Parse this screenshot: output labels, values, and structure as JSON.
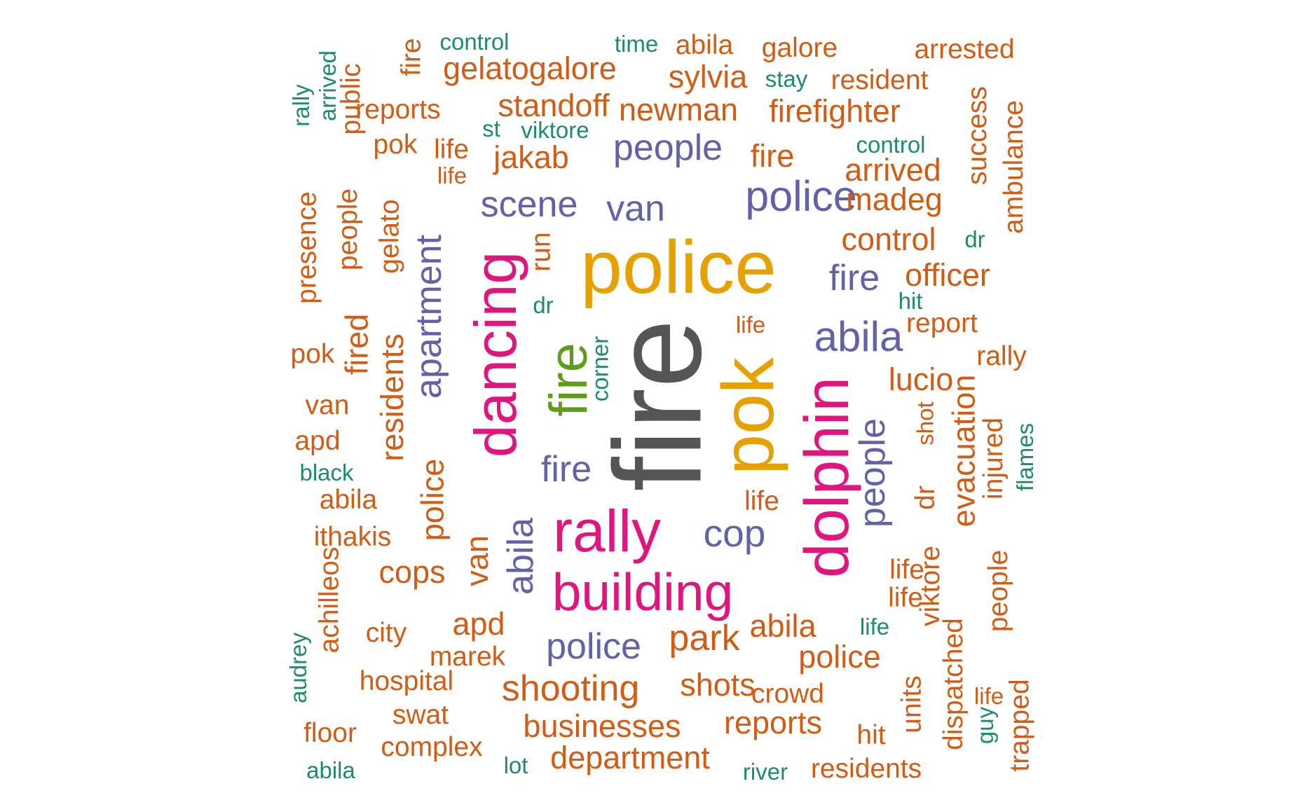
{
  "palette": {
    "dark_gray": "#555555",
    "gold": "#E6A100",
    "magenta": "#E0157D",
    "green": "#5E9E16",
    "purple": "#6560A8",
    "orange": "#D35C14",
    "teal": "#1E8B6C"
  },
  "words": [
    {
      "text": "fire",
      "color": "dark_gray"
    },
    {
      "text": "police",
      "color": "gold"
    },
    {
      "text": "pok",
      "color": "gold"
    },
    {
      "text": "dancing",
      "color": "magenta"
    },
    {
      "text": "dolphin",
      "color": "magenta"
    },
    {
      "text": "rally",
      "color": "magenta"
    },
    {
      "text": "building",
      "color": "magenta"
    },
    {
      "text": "fire",
      "color": "green"
    },
    {
      "text": "police",
      "color": "purple"
    },
    {
      "text": "abila",
      "color": "purple"
    },
    {
      "text": "cop",
      "color": "purple"
    },
    {
      "text": "people",
      "color": "purple"
    },
    {
      "text": "van",
      "color": "purple"
    },
    {
      "text": "scene",
      "color": "purple"
    },
    {
      "text": "fire",
      "color": "purple"
    },
    {
      "text": "fire",
      "color": "purple"
    },
    {
      "text": "apartment",
      "color": "purple"
    },
    {
      "text": "abila",
      "color": "purple"
    },
    {
      "text": "police",
      "color": "purple"
    },
    {
      "text": "people",
      "color": "purple"
    },
    {
      "text": "control",
      "color": "teal"
    },
    {
      "text": "time",
      "color": "teal"
    },
    {
      "text": "abila",
      "color": "orange"
    },
    {
      "text": "galore",
      "color": "orange"
    },
    {
      "text": "arrested",
      "color": "orange"
    },
    {
      "text": "fire",
      "color": "orange"
    },
    {
      "text": "gelatogalore",
      "color": "orange"
    },
    {
      "text": "sylvia",
      "color": "orange"
    },
    {
      "text": "stay",
      "color": "teal"
    },
    {
      "text": "resident",
      "color": "orange"
    },
    {
      "text": "rally",
      "color": "teal"
    },
    {
      "text": "arrived",
      "color": "teal"
    },
    {
      "text": "public",
      "color": "orange"
    },
    {
      "text": "reports",
      "color": "orange"
    },
    {
      "text": "standoff",
      "color": "orange"
    },
    {
      "text": "newman",
      "color": "orange"
    },
    {
      "text": "firefighter",
      "color": "orange"
    },
    {
      "text": "success",
      "color": "orange"
    },
    {
      "text": "ambulance",
      "color": "orange"
    },
    {
      "text": "st",
      "color": "teal"
    },
    {
      "text": "viktore",
      "color": "teal"
    },
    {
      "text": "pok",
      "color": "orange"
    },
    {
      "text": "life",
      "color": "orange"
    },
    {
      "text": "life",
      "color": "orange"
    },
    {
      "text": "jakab",
      "color": "orange"
    },
    {
      "text": "fire",
      "color": "orange"
    },
    {
      "text": "control",
      "color": "teal"
    },
    {
      "text": "arrived",
      "color": "orange"
    },
    {
      "text": "presence",
      "color": "orange"
    },
    {
      "text": "people",
      "color": "orange"
    },
    {
      "text": "gelato",
      "color": "orange"
    },
    {
      "text": "madeg",
      "color": "orange"
    },
    {
      "text": "control",
      "color": "orange"
    },
    {
      "text": "dr",
      "color": "teal"
    },
    {
      "text": "run",
      "color": "orange"
    },
    {
      "text": "officer",
      "color": "orange"
    },
    {
      "text": "hit",
      "color": "teal"
    },
    {
      "text": "dr",
      "color": "teal"
    },
    {
      "text": "fired",
      "color": "orange"
    },
    {
      "text": "residents",
      "color": "orange"
    },
    {
      "text": "corner",
      "color": "teal"
    },
    {
      "text": "life",
      "color": "orange"
    },
    {
      "text": "report",
      "color": "orange"
    },
    {
      "text": "pok",
      "color": "orange"
    },
    {
      "text": "rally",
      "color": "orange"
    },
    {
      "text": "lucio",
      "color": "orange"
    },
    {
      "text": "van",
      "color": "orange"
    },
    {
      "text": "shot",
      "color": "orange"
    },
    {
      "text": "evacuation",
      "color": "orange"
    },
    {
      "text": "injured",
      "color": "orange"
    },
    {
      "text": "flames",
      "color": "teal"
    },
    {
      "text": "apd",
      "color": "orange"
    },
    {
      "text": "black",
      "color": "teal"
    },
    {
      "text": "police",
      "color": "orange"
    },
    {
      "text": "dr",
      "color": "orange"
    },
    {
      "text": "abila",
      "color": "orange"
    },
    {
      "text": "life",
      "color": "orange"
    },
    {
      "text": "ithakis",
      "color": "orange"
    },
    {
      "text": "van",
      "color": "orange"
    },
    {
      "text": "viktore",
      "color": "orange"
    },
    {
      "text": "life",
      "color": "orange"
    },
    {
      "text": "achilleos",
      "color": "orange"
    },
    {
      "text": "cops",
      "color": "orange"
    },
    {
      "text": "life",
      "color": "orange"
    },
    {
      "text": "people",
      "color": "orange"
    },
    {
      "text": "life",
      "color": "teal"
    },
    {
      "text": "apd",
      "color": "orange"
    },
    {
      "text": "abila",
      "color": "orange"
    },
    {
      "text": "city",
      "color": "orange"
    },
    {
      "text": "park",
      "color": "orange"
    },
    {
      "text": "audrey",
      "color": "teal"
    },
    {
      "text": "marek",
      "color": "orange"
    },
    {
      "text": "police",
      "color": "orange"
    },
    {
      "text": "dispatched",
      "color": "orange"
    },
    {
      "text": "hospital",
      "color": "orange"
    },
    {
      "text": "shooting",
      "color": "orange"
    },
    {
      "text": "shots",
      "color": "orange"
    },
    {
      "text": "crowd",
      "color": "orange"
    },
    {
      "text": "units",
      "color": "orange"
    },
    {
      "text": "life",
      "color": "orange"
    },
    {
      "text": "trapped",
      "color": "orange"
    },
    {
      "text": "guy",
      "color": "teal"
    },
    {
      "text": "swat",
      "color": "orange"
    },
    {
      "text": "floor",
      "color": "orange"
    },
    {
      "text": "businesses",
      "color": "orange"
    },
    {
      "text": "reports",
      "color": "orange"
    },
    {
      "text": "hit",
      "color": "orange"
    },
    {
      "text": "complex",
      "color": "orange"
    },
    {
      "text": "abila",
      "color": "teal"
    },
    {
      "text": "lot",
      "color": "teal"
    },
    {
      "text": "department",
      "color": "orange"
    },
    {
      "text": "river",
      "color": "teal"
    },
    {
      "text": "residents",
      "color": "orange"
    }
  ]
}
